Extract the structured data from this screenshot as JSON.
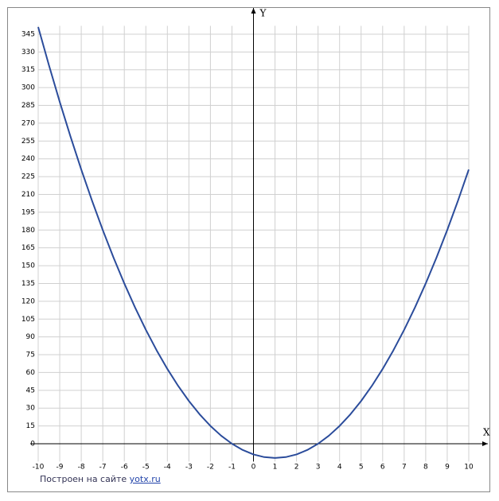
{
  "chart_data": {
    "type": "line",
    "x_label": "X",
    "y_label": "Y",
    "x": [
      -10,
      -9.5,
      -9,
      -8.5,
      -8,
      -7.5,
      -7,
      -6.5,
      -6,
      -5.5,
      -5,
      -4.5,
      -4,
      -3.5,
      -3,
      -2.5,
      -2,
      -1.5,
      -1,
      -0.5,
      0,
      0.5,
      1,
      1.5,
      2,
      2.5,
      3,
      3.5,
      4,
      4.5,
      5,
      5.5,
      6,
      6.5,
      7,
      7.5,
      8,
      8.5,
      9,
      9.5,
      10
    ],
    "series": [
      {
        "color": "#2b4c9b",
        "values": [
          351,
          318.75,
          288,
          258.75,
          231,
          204.75,
          180,
          156.75,
          135,
          114.75,
          96,
          78.75,
          63,
          48.75,
          36,
          24.75,
          15,
          6.75,
          0,
          -5.25,
          -9,
          -11.25,
          -12,
          -11.25,
          -9,
          -5.25,
          0,
          6.75,
          15,
          24.75,
          36,
          48.75,
          63,
          78.75,
          96,
          114.75,
          135,
          156.75,
          180,
          204.75,
          231
        ]
      }
    ],
    "xlim": [
      -10,
      10
    ],
    "ylim": [
      -15,
      352
    ],
    "xticks": [
      -10,
      -9,
      -8,
      -7,
      -6,
      -5,
      -4,
      -3,
      -2,
      -1,
      0,
      1,
      2,
      3,
      4,
      5,
      6,
      7,
      8,
      9,
      10
    ],
    "yticks": [
      0,
      15,
      30,
      45,
      60,
      75,
      90,
      105,
      120,
      135,
      150,
      165,
      180,
      195,
      210,
      225,
      240,
      255,
      270,
      285,
      300,
      315,
      330,
      345
    ],
    "grid": true
  },
  "footer": {
    "text": "Построен на сайте",
    "link": "yotx.ru"
  }
}
